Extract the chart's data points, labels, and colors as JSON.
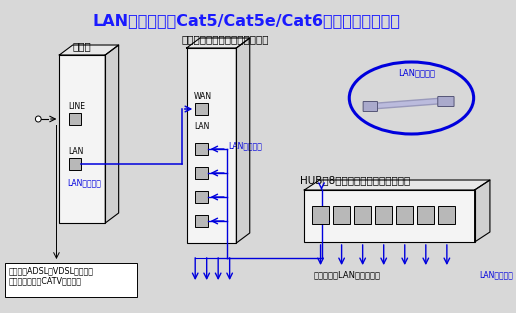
{
  "title": "LANケーブル（Cat5/Cat5e/Cat6等）による接続例",
  "title_color": "#1a1aff",
  "title_fontsize": 11.5,
  "bg_color": "#d8d8d8",
  "label_modem": "モデム",
  "label_router": "有線ルータ（又は無線ルータ）",
  "label_hub": "HUB（8ポートスイッチングハブ）",
  "label_lan_cable_oval": "LANケーブル",
  "label_phone": "電話線（ADSL、VDSLの場合）\n同軌ケーブル（CATVの場合）",
  "label_terminal": "端末機器やLAN装置を接続",
  "label_lan1": "LANケーブル",
  "label_lan2": "LANケーブル",
  "label_lan3": "LANケーブル",
  "port_line": "LINE",
  "port_lan": "LAN",
  "port_wan": "WAN",
  "blue": "#0000dd",
  "black": "#000000",
  "gray_port": "#b8b8b8",
  "white": "#ffffff",
  "near_white": "#f4f4f4",
  "top_face": "#e8e8e8",
  "right_face": "#d0d0d0"
}
